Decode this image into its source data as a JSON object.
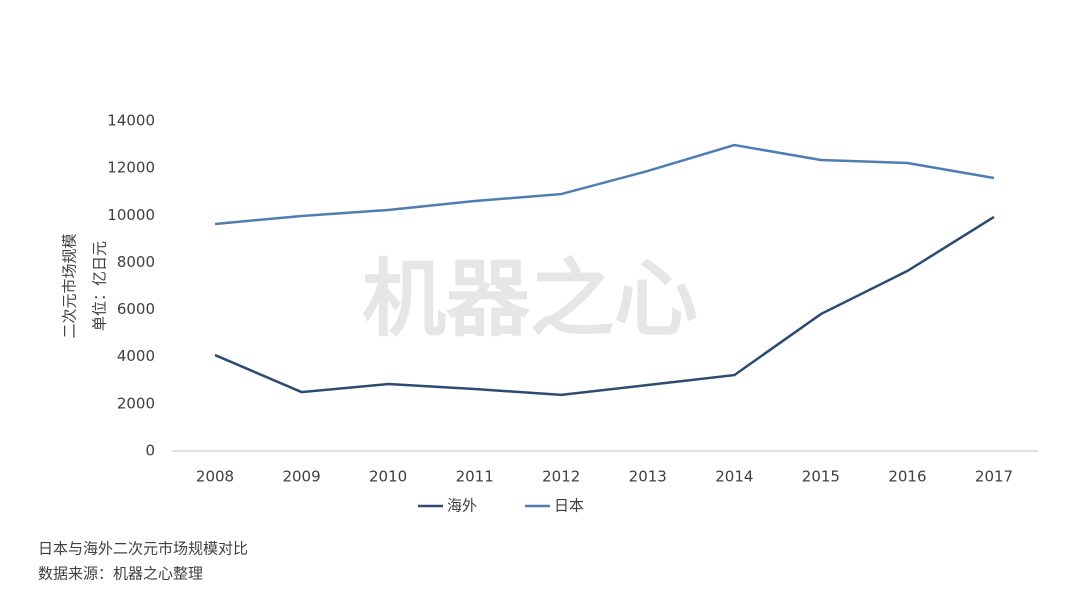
{
  "chart_data": {
    "type": "line",
    "ylabel": [
      "二次元市场规模",
      "单位：亿日元"
    ],
    "categories": [
      "2008",
      "2009",
      "2010",
      "2011",
      "2012",
      "2013",
      "2014",
      "2015",
      "2016",
      "2017"
    ],
    "series": [
      {
        "name": "海外",
        "color": "#2c4a72",
        "values": [
          4070,
          2500,
          2840,
          2630,
          2380,
          2800,
          3220,
          5810,
          7640,
          9930
        ]
      },
      {
        "name": "日本",
        "color": "#4f7db3",
        "values": [
          9630,
          9970,
          10225,
          10606,
          10900,
          11880,
          12980,
          12345,
          12220,
          11580
        ]
      }
    ],
    "ylim": [
      0,
      14000
    ],
    "yticks": [
      0,
      2000,
      4000,
      6000,
      8000,
      10000,
      12000,
      14000
    ],
    "grid": false,
    "legend": "bottom"
  },
  "watermark": "机器之心",
  "caption": [
    "日本与海外二次元市场规模对比",
    "数据来源：机器之心整理"
  ]
}
